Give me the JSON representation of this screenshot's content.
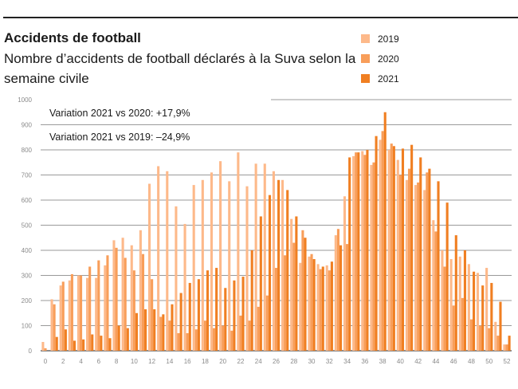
{
  "header": {
    "title": "Accidents de football",
    "subtitle": "Nombre d’accidents de football déclarés à la Suva selon la semaine civile"
  },
  "colors": {
    "2019": "#FDB98A",
    "2020": "#F89E5A",
    "2021": "#F07F22",
    "grid": "#9a9a9a"
  },
  "chart_data": {
    "type": "bar",
    "title": "Accidents de football",
    "subtitle": "Nombre d’accidents de football déclarés à la Suva selon la semaine civile",
    "xlabel": "",
    "ylabel": "",
    "ylim": [
      0,
      1000
    ],
    "yticks": [
      0,
      100,
      200,
      300,
      400,
      500,
      600,
      700,
      800,
      900,
      1000
    ],
    "xticks": [
      0,
      2,
      4,
      6,
      8,
      10,
      12,
      14,
      16,
      18,
      20,
      22,
      24,
      26,
      28,
      30,
      32,
      34,
      36,
      38,
      40,
      42,
      44,
      46,
      48,
      50,
      52
    ],
    "grid": true,
    "legend": "top-right",
    "categories": [
      0,
      1,
      2,
      3,
      4,
      5,
      6,
      7,
      8,
      9,
      10,
      11,
      12,
      13,
      14,
      15,
      16,
      17,
      18,
      19,
      20,
      21,
      22,
      23,
      24,
      25,
      26,
      27,
      28,
      29,
      30,
      31,
      32,
      33,
      34,
      35,
      36,
      37,
      38,
      39,
      40,
      41,
      42,
      43,
      44,
      45,
      46,
      47,
      48,
      49,
      50,
      51,
      52
    ],
    "series": [
      {
        "name": "2019",
        "values": [
          35,
          205,
          260,
          280,
          300,
          290,
          290,
          340,
          440,
          450,
          420,
          480,
          665,
          735,
          715,
          575,
          505,
          660,
          680,
          710,
          755,
          675,
          790,
          655,
          745,
          745,
          715,
          680,
          525,
          350,
          375,
          345,
          340,
          460,
          615,
          775,
          795,
          740,
          840,
          800,
          760,
          680,
          660,
          640,
          520,
          400,
          365,
          375,
          345,
          310,
          330,
          115,
          25
        ]
      },
      {
        "name": "2020",
        "values": [
          10,
          185,
          275,
          305,
          300,
          335,
          360,
          380,
          410,
          370,
          320,
          385,
          285,
          135,
          120,
          70,
          70,
          85,
          120,
          90,
          100,
          80,
          140,
          120,
          175,
          220,
          330,
          380,
          430,
          480,
          385,
          325,
          320,
          485,
          425,
          790,
          780,
          750,
          875,
          825,
          700,
          725,
          670,
          710,
          475,
          335,
          180,
          210,
          125,
          100,
          90,
          60,
          25
        ]
      },
      {
        "name": "2021",
        "values": [
          0,
          55,
          85,
          40,
          45,
          65,
          60,
          50,
          100,
          90,
          150,
          165,
          165,
          145,
          185,
          230,
          270,
          285,
          320,
          330,
          250,
          280,
          295,
          400,
          535,
          620,
          680,
          640,
          535,
          450,
          365,
          335,
          355,
          420,
          770,
          790,
          800,
          855,
          950,
          815,
          805,
          820,
          770,
          725,
          675,
          590,
          460,
          400,
          315,
          260,
          270,
          195,
          60
        ]
      }
    ],
    "annotations": [
      "Variation 2021 vs 2020: +17,9%",
      "Variation 2021 vs 2019: –24,9%"
    ]
  }
}
